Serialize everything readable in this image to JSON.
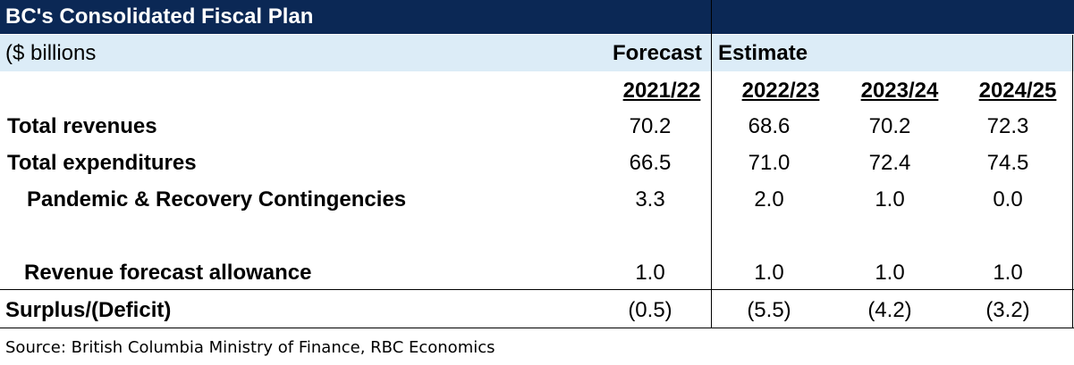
{
  "header": {
    "title": "BC's Consolidated Fiscal Plan",
    "units": "($ billions",
    "forecast": "Forecast",
    "estimate": "Estimate"
  },
  "table": {
    "columns": [
      "2021/22",
      "2022/23",
      "2023/24",
      "2024/25"
    ],
    "rows": [
      {
        "label": "Total revenues",
        "values": [
          "70.2",
          "68.6",
          "70.2",
          "72.3"
        ]
      },
      {
        "label": "Total expenditures",
        "values": [
          "66.5",
          "71.0",
          "72.4",
          "74.5"
        ]
      },
      {
        "label": "Pandemic & Recovery Contingencies",
        "values": [
          "3.3",
          "2.0",
          "1.0",
          "0.0"
        ]
      },
      {
        "label": "Revenue forecast allowance",
        "values": [
          "1.0",
          "1.0",
          "1.0",
          "1.0"
        ]
      },
      {
        "label": "Surplus/(Deficit)",
        "values": [
          "(0.5)",
          "(5.5)",
          "(4.2)",
          "(3.2)"
        ]
      }
    ]
  },
  "footer": {
    "source": "Source: British Columbia Ministry of Finance, RBC  Economics"
  }
}
